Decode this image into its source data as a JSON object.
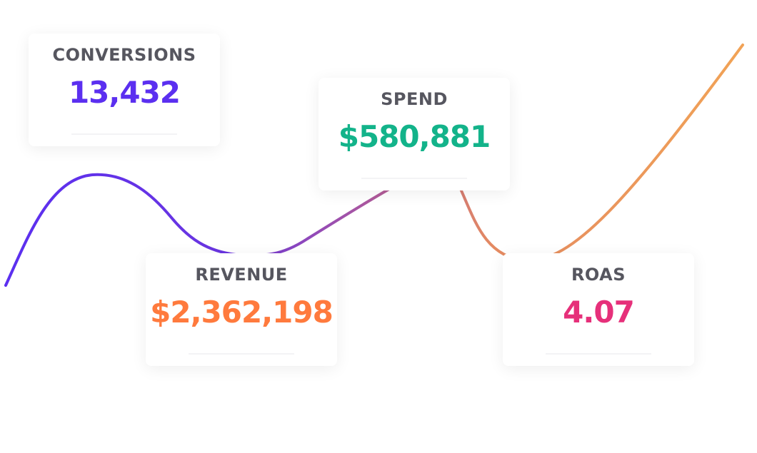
{
  "cards": [
    {
      "label": "CONVERSIONS",
      "value": "13,432"
    },
    {
      "label": "SPEND",
      "value": "$580,881"
    },
    {
      "label": "REVENUE",
      "value": "$2,362,198"
    },
    {
      "label": "ROAS",
      "value": "4.07"
    }
  ]
}
